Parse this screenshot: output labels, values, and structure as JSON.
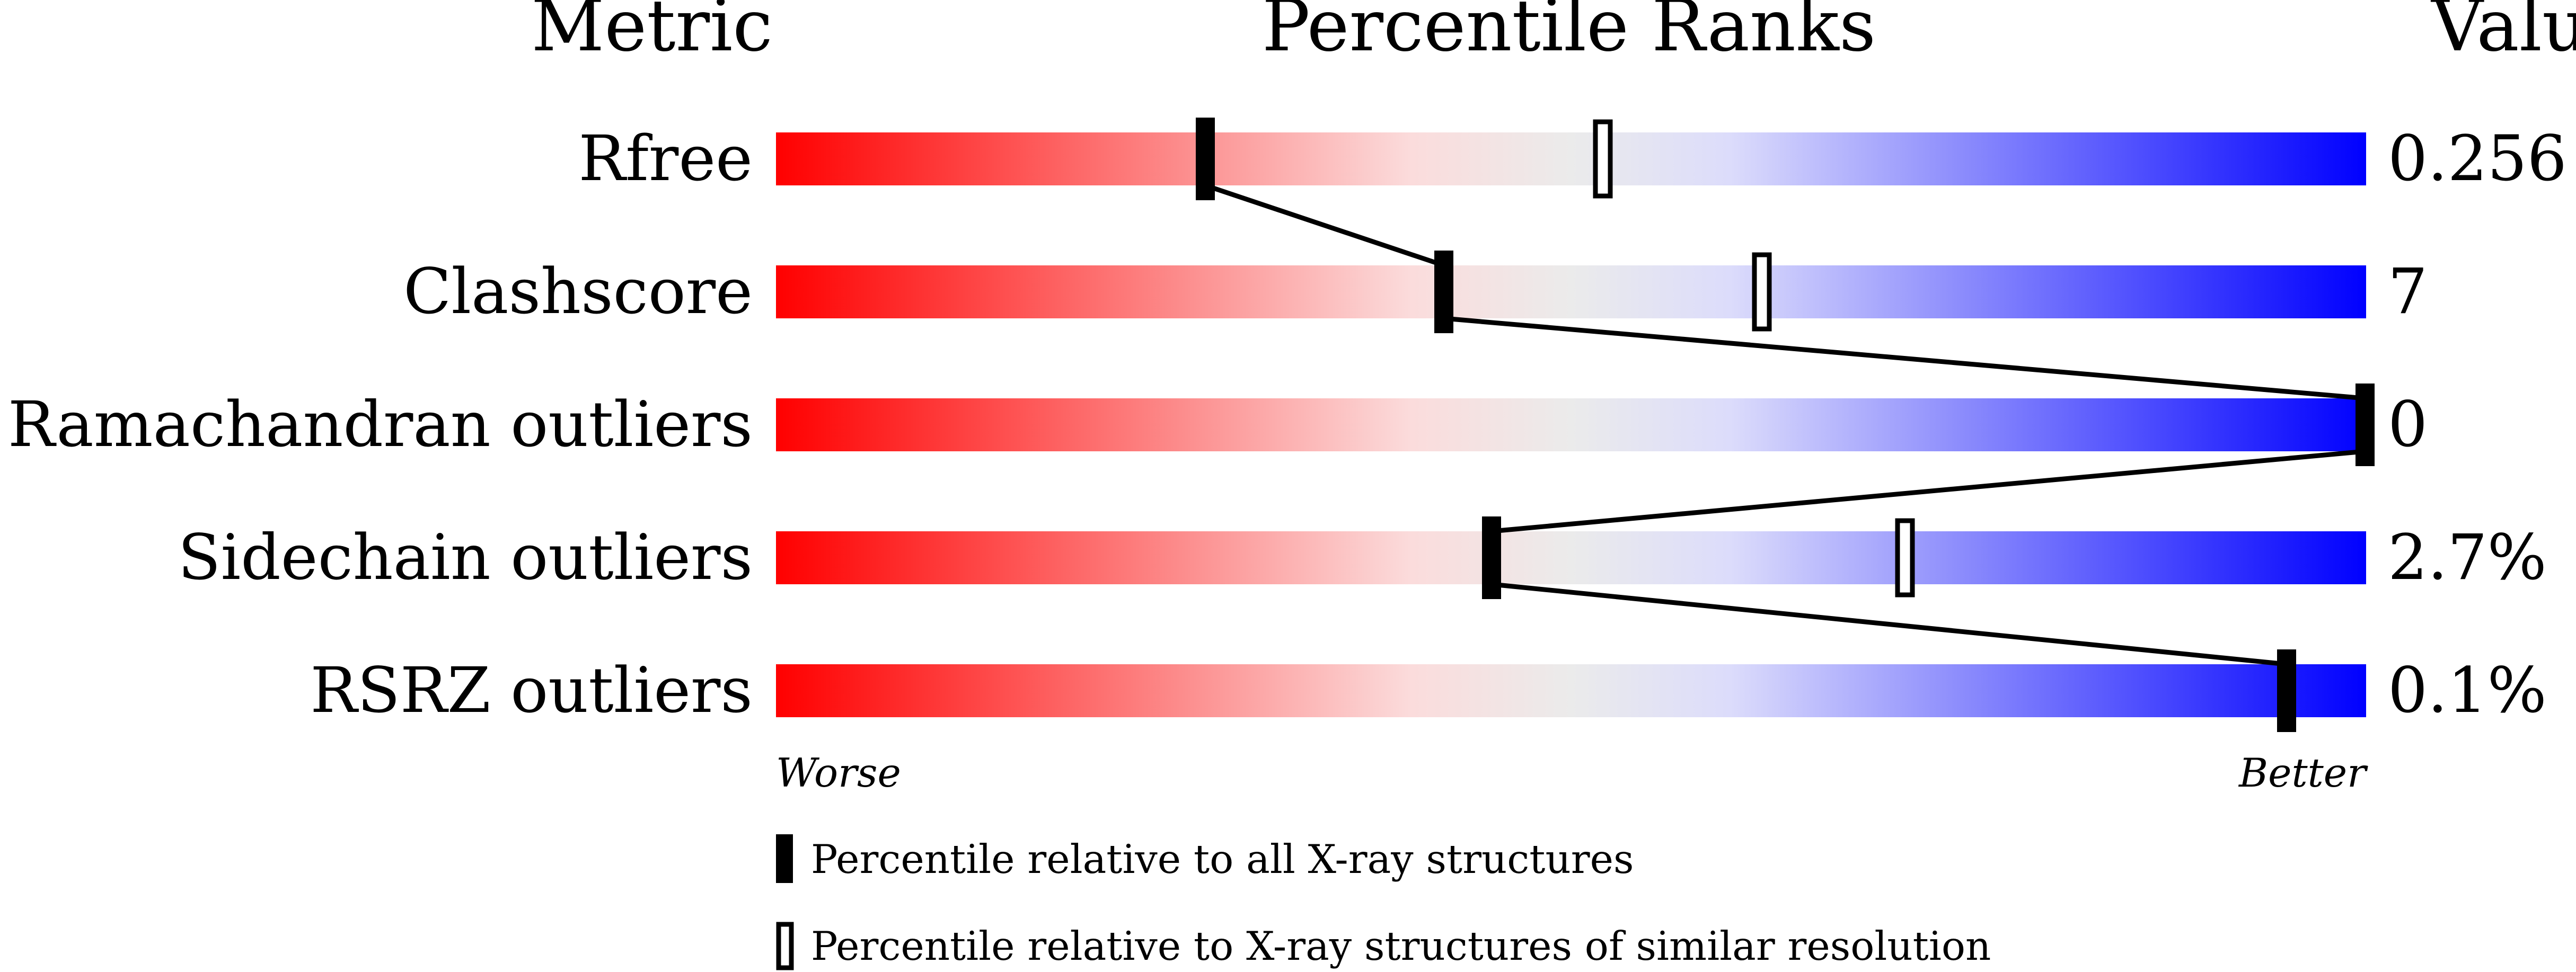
{
  "chart_data": {
    "type": "percentile-slider",
    "headers": {
      "metric": "Metric",
      "ranks": "Percentile Ranks",
      "value": "Value"
    },
    "xlim": [
      0,
      100
    ],
    "gradient_colors": [
      "#ff0000",
      "#fbdcdc",
      "#ebebeb",
      "#dcdcfb",
      "#0000ff"
    ],
    "rows": [
      {
        "metric": "Rfree",
        "value": "0.256",
        "percentile_all": 27,
        "percentile_similar": 52
      },
      {
        "metric": "Clashscore",
        "value": "7",
        "percentile_all": 42,
        "percentile_similar": 62
      },
      {
        "metric": "Ramachandran outliers",
        "value": "0",
        "percentile_all": 100,
        "percentile_similar": null
      },
      {
        "metric": "Sidechain outliers",
        "value": "2.7%",
        "percentile_all": 45,
        "percentile_similar": 71
      },
      {
        "metric": "RSRZ outliers",
        "value": "0.1%",
        "percentile_all": 95,
        "percentile_similar": null
      }
    ],
    "axis_labels": {
      "left": "Worse",
      "right": "Better"
    },
    "legend": {
      "all": "Percentile relative to all X-ray structures",
      "similar": "Percentile relative to X-ray structures of similar resolution"
    }
  }
}
